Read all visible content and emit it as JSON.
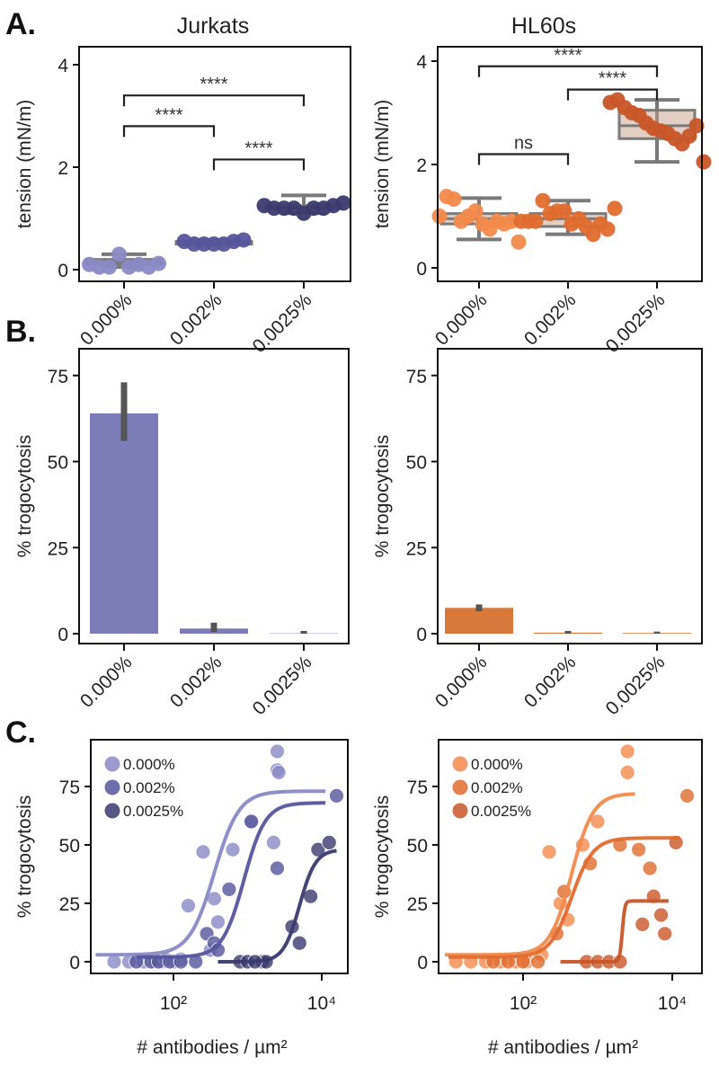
{
  "panel_letters": [
    "A.",
    "B.",
    "C."
  ],
  "colors": {
    "jurkat": [
      "#8a8ac6",
      "#55559c",
      "#3a3a6e"
    ],
    "hl60": [
      "#f28a4c",
      "#e06b2e",
      "#c85628"
    ],
    "jurkat_bar": "#7c7cb9",
    "hl60_bar": "#d6793a",
    "box": "#7a7a7a"
  },
  "chart_data": [
    {
      "id": "A-jurkats",
      "type": "box-swarm",
      "title": "Jurkats",
      "ylabel": "tension (mN/m)",
      "xlabel": "",
      "ylim": [
        -0.2,
        4.3
      ],
      "yticks": [
        0,
        2,
        4
      ],
      "categories": [
        "0.000%",
        "0.002%",
        "0.0025%"
      ],
      "points": [
        [
          0.1,
          0.05,
          0.05,
          0.3,
          0.05,
          0.1,
          0.05,
          0.12
        ],
        [
          0.55,
          0.5,
          0.5,
          0.5,
          0.5,
          0.55,
          0.58
        ],
        [
          1.25,
          1.2,
          1.2,
          1.2,
          1.1,
          1.2,
          1.2,
          1.25,
          1.3
        ]
      ],
      "box": [
        [
          0.05,
          0.1,
          0.15,
          0.2,
          0.3
        ],
        [
          0.5,
          0.5,
          0.52,
          0.55,
          0.58
        ],
        [
          1.1,
          1.2,
          1.22,
          1.25,
          1.45
        ]
      ],
      "significance": [
        {
          "pair": [
            0,
            2
          ],
          "level": 3.4,
          "label": "****"
        },
        {
          "pair": [
            0,
            1
          ],
          "level": 2.8,
          "label": "****"
        },
        {
          "pair": [
            1,
            2
          ],
          "level": 2.15,
          "label": "****"
        }
      ]
    },
    {
      "id": "A-hl60s",
      "type": "box-swarm",
      "title": "HL60s",
      "ylabel": "tension (mN/m)",
      "xlabel": "",
      "ylim": [
        -0.2,
        4.3
      ],
      "yticks": [
        0,
        2,
        4
      ],
      "categories": [
        "0.000%",
        "0.002%",
        "0.0025%"
      ],
      "points": [
        [
          1.0,
          1.38,
          1.33,
          0.9,
          1.0,
          1.1,
          0.85,
          0.75,
          0.9,
          0.85,
          0.9,
          0.5
        ],
        [
          0.9,
          0.9,
          0.9,
          1.3,
          1.05,
          1.1,
          1.1,
          0.85,
          0.95,
          0.8,
          0.65,
          0.85,
          0.75,
          1.15
        ],
        [
          3.2,
          3.25,
          3.1,
          3.0,
          2.95,
          2.8,
          2.7,
          2.65,
          2.6,
          2.5,
          2.4,
          2.55,
          2.75,
          2.05
        ]
      ],
      "box": [
        [
          0.55,
          0.85,
          0.95,
          1.05,
          1.35
        ],
        [
          0.65,
          0.8,
          0.95,
          1.05,
          1.3
        ],
        [
          2.05,
          2.5,
          2.75,
          3.05,
          3.25
        ]
      ],
      "significance": [
        {
          "pair": [
            0,
            2
          ],
          "level": 3.9,
          "label": "****"
        },
        {
          "pair": [
            1,
            2
          ],
          "level": 3.45,
          "label": "****"
        },
        {
          "pair": [
            0,
            1
          ],
          "level": 2.2,
          "label": "ns"
        }
      ]
    },
    {
      "id": "B-jurkats",
      "type": "bar",
      "ylabel": "% trogocytosis",
      "xlabel": "",
      "ylim": [
        0,
        88
      ],
      "yticks": [
        0,
        25,
        50,
        75
      ],
      "categories": [
        "0.000%",
        "0.002%",
        "0.0025%"
      ],
      "values": [
        64,
        1.5,
        0.1
      ],
      "error": [
        [
          56,
          73
        ],
        [
          0.5,
          3.2
        ],
        [
          0,
          0.8
        ]
      ]
    },
    {
      "id": "B-hl60s",
      "type": "bar",
      "ylabel": "% trogocytosis",
      "xlabel": "",
      "ylim": [
        0,
        88
      ],
      "yticks": [
        0,
        25,
        50,
        75
      ],
      "categories": [
        "0.000%",
        "0.002%",
        "0.0025%"
      ],
      "values": [
        7.5,
        0.3,
        0.2
      ],
      "error": [
        [
          6.5,
          8.5
        ],
        [
          0,
          0.8
        ],
        [
          0,
          0.6
        ]
      ]
    },
    {
      "id": "C-jurkats",
      "type": "scatter",
      "ylabel": "% trogocytosis",
      "xlabel": "# antibodies / µm²",
      "xscale": "log",
      "xlim_log10": [
        0.88,
        4.35
      ],
      "ylim": [
        -5,
        95
      ],
      "yticks": [
        0,
        25,
        50,
        75
      ],
      "xticks": [
        {
          "log": 2,
          "label": "10²"
        },
        {
          "log": 4,
          "label": "10⁴"
        }
      ],
      "legend": "top-left",
      "series": [
        {
          "name": "0.000%",
          "points": [
            [
              1.2,
              0
            ],
            [
              1.4,
              0
            ],
            [
              1.6,
              0
            ],
            [
              1.75,
              0
            ],
            [
              1.85,
              0
            ],
            [
              2.0,
              0
            ],
            [
              2.1,
              1
            ],
            [
              2.2,
              24
            ],
            [
              2.4,
              47
            ],
            [
              2.5,
              5
            ],
            [
              2.55,
              27
            ],
            [
              2.6,
              17
            ],
            [
              2.8,
              48
            ],
            [
              3.05,
              60
            ],
            [
              3.35,
              51
            ],
            [
              3.4,
              90
            ],
            [
              3.4,
              82
            ],
            [
              3.42,
              81
            ],
            [
              2.0,
              0
            ],
            [
              1.9,
              1
            ]
          ],
          "fit": {
            "bottom": 3,
            "top": 73,
            "ec50_log": 2.55,
            "hill": 2.6,
            "range_log": [
              0.95,
              4.05
            ]
          }
        },
        {
          "name": "0.002%",
          "points": [
            [
              1.5,
              0
            ],
            [
              1.7,
              0
            ],
            [
              1.8,
              0
            ],
            [
              1.95,
              0
            ],
            [
              2.3,
              0
            ],
            [
              2.45,
              12
            ],
            [
              2.55,
              8
            ],
            [
              2.6,
              5
            ],
            [
              2.75,
              31
            ],
            [
              3.05,
              60
            ],
            [
              3.4,
              40
            ],
            [
              4.2,
              71
            ],
            [
              2.1,
              0
            ]
          ],
          "fit": {
            "bottom": 2,
            "top": 68,
            "ec50_log": 2.95,
            "hill": 3,
            "range_log": [
              1.5,
              4.05
            ]
          }
        },
        {
          "name": "0.0025%",
          "points": [
            [
              2.9,
              0
            ],
            [
              3.0,
              0
            ],
            [
              3.2,
              0
            ],
            [
              3.25,
              0
            ],
            [
              3.6,
              15
            ],
            [
              3.7,
              8
            ],
            [
              3.85,
              28
            ],
            [
              3.95,
              48
            ],
            [
              4.1,
              51
            ],
            [
              3.1,
              0
            ]
          ],
          "fit": {
            "bottom": 0,
            "top": 48,
            "ec50_log": 3.7,
            "hill": 4,
            "range_log": [
              2.6,
              4.2
            ]
          }
        }
      ]
    },
    {
      "id": "C-hl60s",
      "type": "scatter",
      "ylabel": "% trogocytosis",
      "xlabel": "# antibodies / µm²",
      "xscale": "log",
      "xlim_log10": [
        0.88,
        4.35
      ],
      "ylim": [
        -5,
        95
      ],
      "yticks": [
        0,
        25,
        50,
        75
      ],
      "xticks": [
        {
          "log": 2,
          "label": "10²"
        },
        {
          "log": 4,
          "label": "10⁴"
        }
      ],
      "legend": "top-left",
      "series": [
        {
          "name": "0.000%",
          "points": [
            [
              1.1,
              0
            ],
            [
              1.3,
              0
            ],
            [
              1.5,
              0
            ],
            [
              1.7,
              0
            ],
            [
              1.9,
              0
            ],
            [
              2.05,
              0
            ],
            [
              2.25,
              3
            ],
            [
              2.35,
              47
            ],
            [
              2.5,
              25
            ],
            [
              2.6,
              18
            ],
            [
              2.8,
              50
            ],
            [
              3.0,
              60
            ],
            [
              3.4,
              90
            ],
            [
              3.4,
              81
            ]
          ],
          "fit": {
            "bottom": 3,
            "top": 72,
            "ec50_log": 2.65,
            "hill": 3,
            "range_log": [
              0.95,
              3.5
            ]
          }
        },
        {
          "name": "0.002%",
          "points": [
            [
              1.6,
              0
            ],
            [
              1.8,
              0
            ],
            [
              2.0,
              0
            ],
            [
              2.45,
              12
            ],
            [
              2.55,
              30
            ],
            [
              2.9,
              42
            ],
            [
              3.3,
              50
            ],
            [
              3.55,
              48
            ],
            [
              3.7,
              40
            ],
            [
              4.2,
              71
            ],
            [
              2.2,
              0
            ]
          ],
          "fit": {
            "bottom": 2,
            "top": 53,
            "ec50_log": 2.65,
            "hill": 3,
            "range_log": [
              1.0,
              4.1
            ]
          }
        },
        {
          "name": "0.0025%",
          "points": [
            [
              2.85,
              0
            ],
            [
              3.0,
              0
            ],
            [
              3.15,
              0
            ],
            [
              3.3,
              0
            ],
            [
              3.6,
              16
            ],
            [
              3.75,
              28
            ],
            [
              3.85,
              20
            ],
            [
              3.9,
              12
            ],
            [
              4.05,
              51
            ]
          ],
          "fit": {
            "bottom": 0,
            "top": 26,
            "ec50_log": 3.33,
            "hill": 25,
            "range_log": [
              2.5,
              3.95
            ]
          }
        }
      ]
    }
  ]
}
